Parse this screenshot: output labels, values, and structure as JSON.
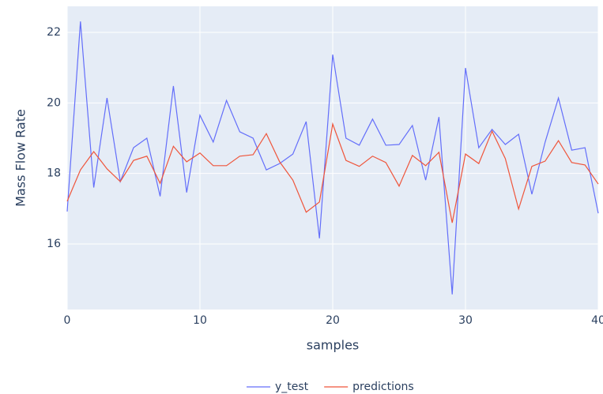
{
  "chart_data": {
    "type": "line",
    "x_label": "samples",
    "y_label": "Mass Flow Rate",
    "x": [
      0,
      1,
      2,
      3,
      4,
      5,
      6,
      7,
      8,
      9,
      10,
      11,
      12,
      13,
      14,
      15,
      16,
      17,
      18,
      19,
      20,
      21,
      22,
      23,
      24,
      25,
      26,
      27,
      28,
      29,
      30,
      31,
      32,
      33,
      34,
      35,
      36,
      37,
      38,
      39,
      40
    ],
    "series": [
      {
        "name": "y_test",
        "color": "#636efa",
        "values": [
          16.92,
          22.31,
          17.6,
          20.14,
          17.77,
          18.73,
          19.0,
          17.35,
          20.48,
          17.46,
          19.65,
          18.89,
          20.07,
          19.18,
          19.0,
          18.1,
          18.28,
          18.55,
          19.47,
          16.16,
          21.37,
          19.0,
          18.8,
          19.54,
          18.8,
          18.82,
          19.36,
          17.81,
          19.6,
          14.57,
          20.99,
          18.73,
          19.25,
          18.82,
          19.11,
          17.41,
          18.89,
          20.14,
          18.66,
          18.73,
          16.87
        ]
      },
      {
        "name": "predictions",
        "color": "#ef553b",
        "values": [
          17.21,
          18.1,
          18.62,
          18.13,
          17.77,
          18.37,
          18.49,
          17.72,
          18.77,
          18.33,
          18.58,
          18.22,
          18.22,
          18.49,
          18.53,
          19.13,
          18.33,
          17.81,
          16.9,
          17.19,
          19.4,
          18.37,
          18.2,
          18.49,
          18.31,
          17.64,
          18.51,
          18.22,
          18.6,
          16.6,
          18.55,
          18.28,
          19.2,
          18.42,
          16.99,
          18.2,
          18.35,
          18.93,
          18.31,
          18.24,
          17.7
        ]
      }
    ],
    "xlim": [
      0,
      40
    ],
    "xticks": [
      0,
      10,
      20,
      30,
      40
    ],
    "ylim": [
      14.14,
      22.74
    ],
    "yticks": [
      16,
      18,
      20,
      22
    ],
    "grid": true,
    "legend": "bottom",
    "plot_background": "#e5ecf6"
  }
}
